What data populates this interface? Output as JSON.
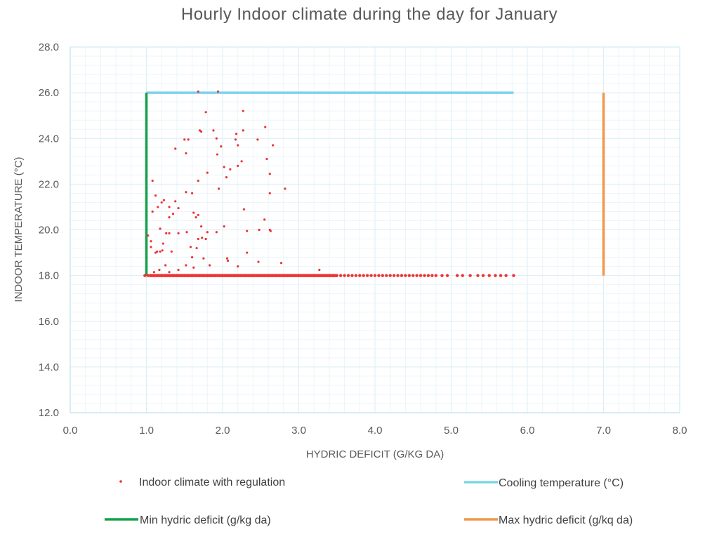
{
  "chart_data": {
    "type": "scatter",
    "title": "Hourly  Indoor  climate  during  the  day for  January",
    "xlabel": "HYDRIC DEFICIT (G/KG DA)",
    "ylabel": "INDOOR TEMPERATURE (°C)",
    "xlim": [
      0,
      8
    ],
    "ylim": [
      12,
      28
    ],
    "x_ticks": [
      "0.0",
      "1.0",
      "2.0",
      "3.0",
      "4.0",
      "5.0",
      "6.0",
      "7.0",
      "8.0"
    ],
    "y_ticks": [
      "12.0",
      "14.0",
      "16.0",
      "18.0",
      "20.0",
      "22.0",
      "24.0",
      "26.0",
      "28.0"
    ],
    "grid": true,
    "legend_position": "bottom",
    "series": [
      {
        "name": "Indoor climate with regulation",
        "kind": "scatter",
        "color": "#ee3333",
        "points": [
          [
            1.68,
            26.05
          ],
          [
            1.94,
            26.05
          ],
          [
            2.27,
            25.2
          ],
          [
            1.78,
            25.15
          ],
          [
            2.56,
            24.5
          ],
          [
            1.7,
            24.35
          ],
          [
            1.72,
            24.3
          ],
          [
            1.88,
            24.35
          ],
          [
            2.27,
            24.35
          ],
          [
            2.18,
            24.2
          ],
          [
            1.92,
            24.0
          ],
          [
            1.55,
            23.95
          ],
          [
            1.5,
            23.95
          ],
          [
            2.17,
            23.95
          ],
          [
            2.46,
            23.95
          ],
          [
            1.98,
            23.65
          ],
          [
            2.2,
            23.7
          ],
          [
            2.66,
            23.7
          ],
          [
            1.38,
            23.55
          ],
          [
            1.52,
            23.35
          ],
          [
            1.93,
            23.3
          ],
          [
            2.58,
            23.1
          ],
          [
            2.25,
            23.0
          ],
          [
            2.2,
            22.8
          ],
          [
            2.02,
            22.75
          ],
          [
            2.1,
            22.65
          ],
          [
            1.8,
            22.5
          ],
          [
            2.62,
            22.45
          ],
          [
            2.05,
            22.3
          ],
          [
            1.68,
            22.15
          ],
          [
            1.08,
            22.15
          ],
          [
            1.95,
            21.8
          ],
          [
            2.82,
            21.8
          ],
          [
            1.52,
            21.65
          ],
          [
            1.6,
            21.6
          ],
          [
            2.62,
            21.6
          ],
          [
            1.12,
            21.5
          ],
          [
            1.23,
            21.3
          ],
          [
            1.2,
            21.2
          ],
          [
            1.38,
            21.25
          ],
          [
            1.3,
            21.0
          ],
          [
            1.15,
            21.0
          ],
          [
            1.42,
            20.95
          ],
          [
            2.28,
            20.9
          ],
          [
            1.08,
            20.8
          ],
          [
            1.62,
            20.75
          ],
          [
            1.35,
            20.7
          ],
          [
            1.68,
            20.65
          ],
          [
            1.3,
            20.55
          ],
          [
            1.65,
            20.55
          ],
          [
            2.55,
            20.45
          ],
          [
            1.18,
            20.05
          ],
          [
            1.72,
            20.15
          ],
          [
            2.02,
            20.15
          ],
          [
            2.62,
            20.0
          ],
          [
            2.48,
            20.0
          ],
          [
            2.63,
            19.95
          ],
          [
            1.26,
            19.85
          ],
          [
            1.3,
            19.85
          ],
          [
            1.42,
            19.85
          ],
          [
            1.53,
            19.9
          ],
          [
            1.8,
            19.9
          ],
          [
            1.92,
            19.9
          ],
          [
            2.32,
            19.95
          ],
          [
            1.73,
            19.65
          ],
          [
            1.02,
            19.75
          ],
          [
            1.06,
            19.5
          ],
          [
            1.68,
            19.6
          ],
          [
            1.78,
            19.6
          ],
          [
            1.22,
            19.4
          ],
          [
            1.06,
            19.25
          ],
          [
            1.58,
            19.25
          ],
          [
            1.66,
            19.2
          ],
          [
            1.14,
            19.05
          ],
          [
            1.18,
            19.05
          ],
          [
            1.21,
            19.1
          ],
          [
            1.12,
            19.0
          ],
          [
            1.33,
            19.05
          ],
          [
            2.32,
            19.0
          ],
          [
            1.75,
            18.75
          ],
          [
            1.6,
            18.8
          ],
          [
            2.06,
            18.75
          ],
          [
            2.07,
            18.65
          ],
          [
            2.47,
            18.6
          ],
          [
            2.77,
            18.55
          ],
          [
            1.25,
            18.45
          ],
          [
            1.52,
            18.45
          ],
          [
            1.83,
            18.45
          ],
          [
            2.2,
            18.4
          ],
          [
            1.62,
            18.35
          ],
          [
            1.17,
            18.25
          ],
          [
            1.42,
            18.25
          ],
          [
            3.27,
            18.25
          ],
          [
            1.1,
            18.15
          ],
          [
            1.3,
            18.15
          ]
        ],
        "baseline": {
          "y": 18.0,
          "x": [
            0.98,
            1.02,
            1.05,
            1.1,
            1.15,
            1.2,
            1.25,
            1.3,
            1.35,
            1.4,
            1.45,
            1.5,
            1.55,
            1.6,
            1.65,
            1.7,
            1.75,
            1.8,
            1.85,
            1.9,
            1.95,
            2.0,
            2.05,
            2.1,
            2.15,
            2.2,
            2.25,
            2.3,
            2.35,
            2.4,
            2.45,
            2.5,
            2.55,
            2.6,
            2.65,
            2.7,
            2.75,
            2.8,
            2.85,
            2.9,
            2.95,
            3.0,
            3.05,
            3.1,
            3.15,
            3.2,
            3.25,
            3.3,
            3.35,
            3.4,
            3.45,
            3.5,
            3.55,
            3.6,
            3.65,
            3.7,
            3.75,
            3.8,
            3.85,
            3.9,
            3.95,
            4.0,
            4.05,
            4.1,
            4.15,
            4.2,
            4.25,
            4.3,
            4.35,
            4.4,
            4.45,
            4.5,
            4.55,
            4.6,
            4.65,
            4.7,
            4.75,
            4.8,
            4.88,
            4.95,
            5.08,
            5.15,
            5.25,
            5.35,
            5.42,
            5.5,
            5.58,
            5.65,
            5.72,
            5.82
          ]
        }
      },
      {
        "name": "Cooling temperature (°C)",
        "kind": "line",
        "color": "#7ed3e9",
        "points": [
          [
            1.0,
            26.0
          ],
          [
            5.82,
            26.0
          ]
        ]
      },
      {
        "name": "Min hydric deficit (g/kg da)",
        "kind": "line",
        "color": "#14a04b",
        "points": [
          [
            1.0,
            18.0
          ],
          [
            1.0,
            26.0
          ]
        ]
      },
      {
        "name": "Max hydric deficit (g/kq da)",
        "kind": "line",
        "color": "#f0974a",
        "points": [
          [
            7.0,
            18.0
          ],
          [
            7.0,
            26.0
          ]
        ]
      }
    ]
  }
}
